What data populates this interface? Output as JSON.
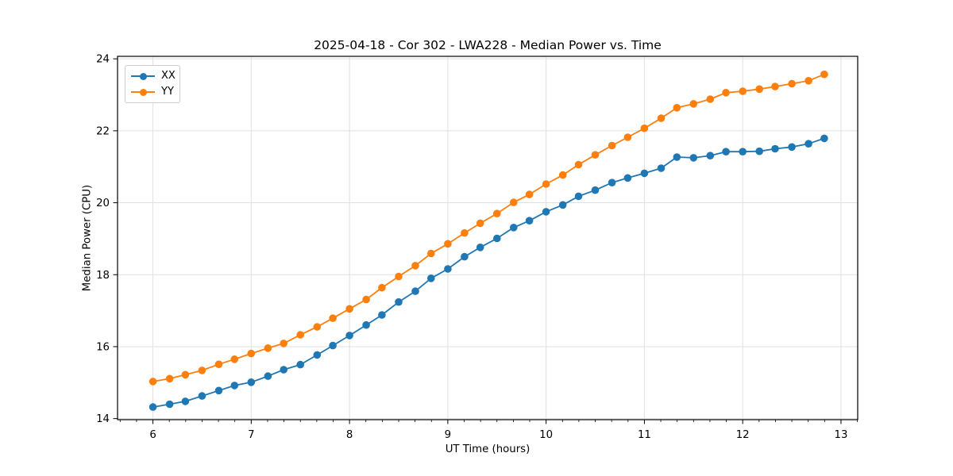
{
  "chart_data": {
    "type": "line",
    "title": "2025-04-18 - Cor 302 - LWA228 - Median Power vs. Time",
    "xlabel": "UT Time (hours)",
    "ylabel": "Median Power (CPU)",
    "xlim": [
      5.64,
      13.17
    ],
    "ylim": [
      13.97,
      24.07
    ],
    "xticks": [
      6,
      7,
      8,
      9,
      10,
      11,
      12,
      13
    ],
    "yticks": [
      14,
      16,
      18,
      20,
      22,
      24
    ],
    "x_minor_tick_step_hours": 0.1667,
    "grid": true,
    "legend_position": "upper left",
    "x": [
      6.0,
      6.17,
      6.33,
      6.5,
      6.67,
      6.83,
      7.0,
      7.17,
      7.33,
      7.5,
      7.67,
      7.83,
      8.0,
      8.17,
      8.33,
      8.5,
      8.67,
      8.83,
      9.0,
      9.17,
      9.33,
      9.5,
      9.67,
      9.83,
      10.0,
      10.17,
      10.33,
      10.5,
      10.67,
      10.83,
      11.0,
      11.17,
      11.33,
      11.5,
      11.67,
      11.83,
      12.0,
      12.17,
      12.33,
      12.5,
      12.67,
      12.83
    ],
    "series": [
      {
        "name": "XX",
        "color": "#1f77b4",
        "marker": "circle",
        "values": [
          14.32,
          14.4,
          14.48,
          14.63,
          14.78,
          14.92,
          15.01,
          15.18,
          15.36,
          15.5,
          15.77,
          16.03,
          16.31,
          16.6,
          16.88,
          17.24,
          17.54,
          17.9,
          18.16,
          18.5,
          18.76,
          19.01,
          19.31,
          19.5,
          19.75,
          19.94,
          20.18,
          20.35,
          20.56,
          20.69,
          20.82,
          20.96,
          21.27,
          21.25,
          21.31,
          21.42,
          21.42,
          21.43,
          21.5,
          21.55,
          21.64,
          21.79
        ]
      },
      {
        "name": "YY",
        "color": "#ff7f0e",
        "marker": "circle",
        "values": [
          15.03,
          15.11,
          15.22,
          15.34,
          15.51,
          15.65,
          15.81,
          15.96,
          16.09,
          16.33,
          16.55,
          16.79,
          17.05,
          17.31,
          17.64,
          17.95,
          18.25,
          18.59,
          18.86,
          19.16,
          19.43,
          19.7,
          20.01,
          20.23,
          20.52,
          20.77,
          21.06,
          21.33,
          21.59,
          21.82,
          22.07,
          22.35,
          22.64,
          22.75,
          22.88,
          23.06,
          23.1,
          23.16,
          23.23,
          23.31,
          23.39,
          23.57
        ]
      }
    ]
  }
}
